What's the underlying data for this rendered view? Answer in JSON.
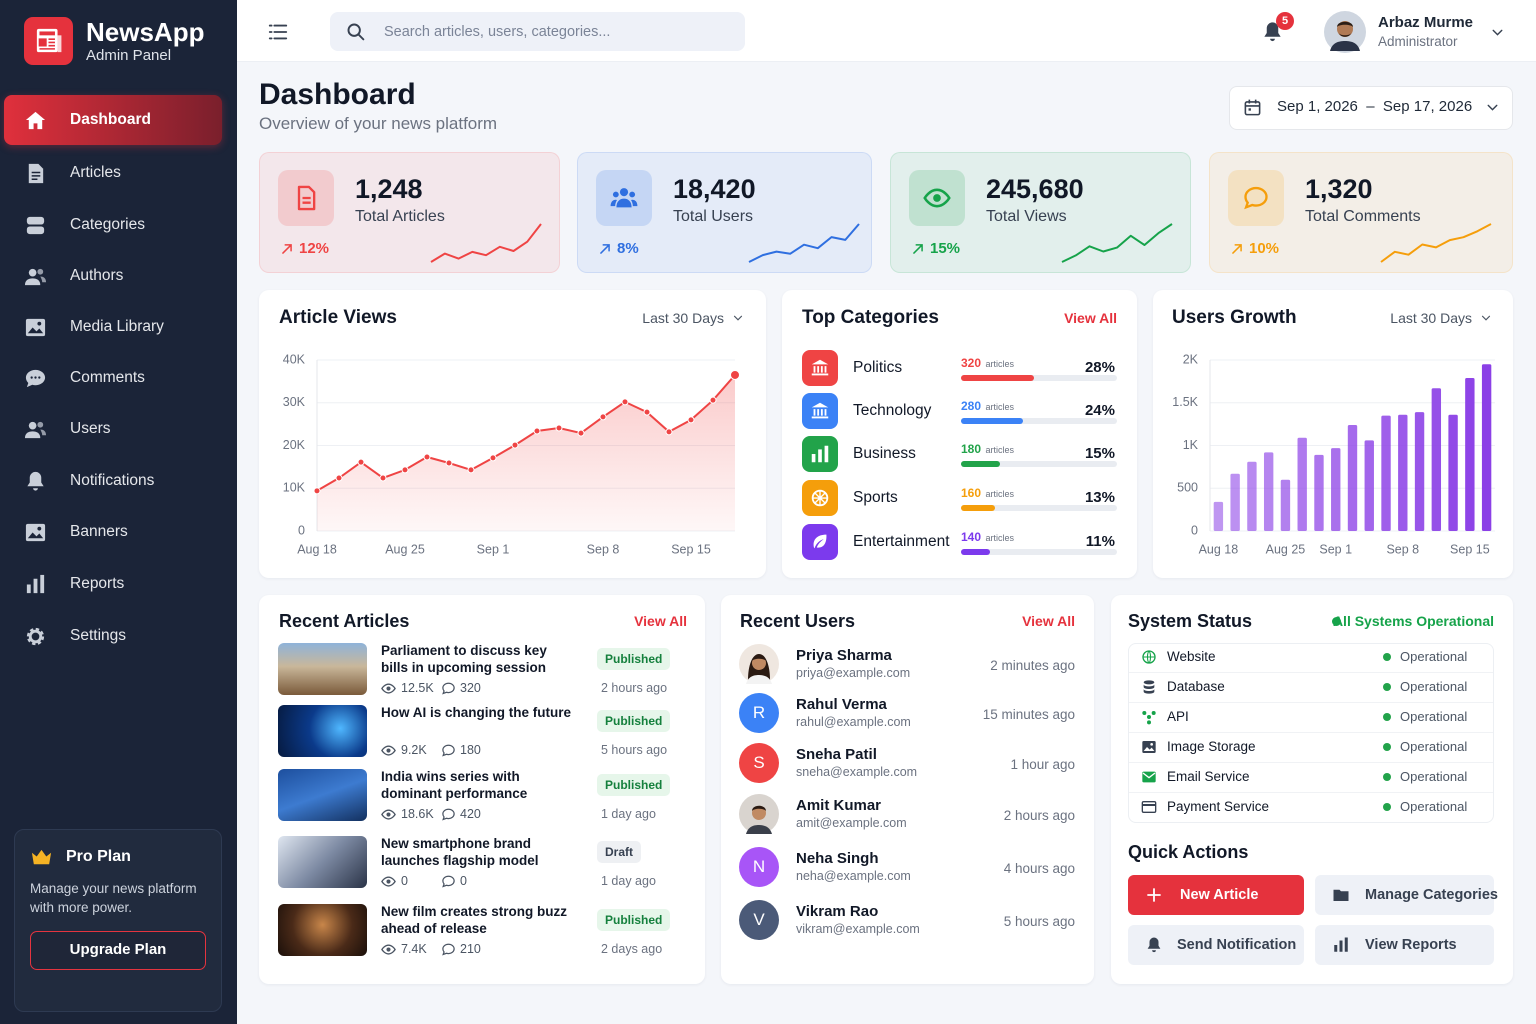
{
  "brand": {
    "name": "NewsApp",
    "subtitle": "Admin Panel"
  },
  "nav": {
    "active": 0,
    "items": [
      "Dashboard",
      "Articles",
      "Categories",
      "Authors",
      "Media Library",
      "Comments",
      "Users",
      "Notifications",
      "Banners",
      "Reports",
      "Settings"
    ]
  },
  "pro_plan": {
    "title": "Pro Plan",
    "text": "Manage your news platform with more power.",
    "button": "Upgrade Plan"
  },
  "topbar": {
    "search_placeholder": "Search articles, users, categories...",
    "notification_count": 5,
    "user": {
      "name": "Arbaz Murme",
      "role": "Administrator"
    }
  },
  "header": {
    "title": "Dashboard",
    "subtitle": "Overview of your news platform",
    "date_range": "Sep 1, 2026  –  Sep 17, 2026"
  },
  "stats": [
    {
      "value": "1,248",
      "label": "Total Articles",
      "change": "12%",
      "color": "#ef4444",
      "trend": [
        2,
        3,
        2.4,
        3.2,
        2.8,
        3.8,
        3.3,
        4.4,
        6.5
      ]
    },
    {
      "value": "18,420",
      "label": "Total Users",
      "change": "8%",
      "color": "#2f6fe0",
      "trend": [
        1,
        2,
        2.5,
        2.2,
        3.5,
        3,
        4.6,
        4.2,
        6.5
      ]
    },
    {
      "value": "245,680",
      "label": "Total Views",
      "change": "15%",
      "color": "#16a34a",
      "trend": [
        1,
        2,
        3.4,
        2.6,
        3.2,
        5,
        3.6,
        5.4,
        6.8
      ]
    },
    {
      "value": "1,320",
      "label": "Total Comments",
      "change": "10%",
      "color": "#f59e0b",
      "trend": [
        1,
        2.4,
        2,
        3.4,
        3,
        4,
        4.4,
        5.2,
        6.2
      ]
    }
  ],
  "chart_data": [
    {
      "type": "line",
      "title": "Article Views",
      "period": "Last 30 Days",
      "color": "#ef4444",
      "categories": [
        "Aug 18",
        null,
        null,
        null,
        "Aug 25",
        null,
        null,
        null,
        "Sep 1",
        null,
        null,
        null,
        null,
        "Sep 8",
        null,
        null,
        null,
        "Sep 15",
        null,
        null
      ],
      "values": [
        9400,
        12400,
        16100,
        12400,
        14300,
        17300,
        15900,
        14300,
        17100,
        20100,
        23400,
        24100,
        22900,
        26700,
        30200,
        27800,
        23200,
        26000,
        30600,
        36500
      ],
      "ylim": [
        0,
        40000
      ],
      "yticks": [
        0,
        {
          "value": 10000,
          "label": "10K"
        },
        {
          "value": 20000,
          "label": "20K"
        },
        {
          "value": 30000,
          "label": "30K"
        },
        {
          "value": 40000,
          "label": "40K"
        }
      ],
      "grid": true
    },
    {
      "type": "bar",
      "title": "Users Growth",
      "period": "Last 30 Days",
      "color": "#8b3fe6",
      "categories": [
        "Aug 18",
        null,
        null,
        null,
        "Aug 25",
        null,
        null,
        "Sep 1",
        null,
        null,
        null,
        "Sep 8",
        null,
        null,
        null,
        "Sep 15",
        null
      ],
      "values": [
        340,
        670,
        810,
        920,
        600,
        1090,
        890,
        970,
        1240,
        1060,
        1350,
        1360,
        1390,
        1670,
        1360,
        1790,
        1950
      ],
      "ylim": [
        0,
        2000
      ],
      "yticks": [
        0,
        500,
        {
          "value": 1000,
          "label": "1K"
        },
        {
          "value": 1500,
          "label": "1.5K"
        },
        {
          "value": 2000,
          "label": "2K"
        }
      ],
      "grid": true
    }
  ],
  "top_categories": {
    "title": "Top Categories",
    "link": "View All",
    "unit": "articles",
    "rows": [
      {
        "name": "Politics",
        "articles": 320,
        "share": 28,
        "share_label": "28%",
        "color": "#ef4444"
      },
      {
        "name": "Technology",
        "articles": 280,
        "share": 24,
        "share_label": "24%",
        "color": "#3b82f6"
      },
      {
        "name": "Business",
        "articles": 180,
        "share": 15,
        "share_label": "15%",
        "color": "#22a34a"
      },
      {
        "name": "Sports",
        "articles": 160,
        "share": 13,
        "share_label": "13%",
        "color": "#f59e0b"
      },
      {
        "name": "Entertainment",
        "articles": 140,
        "share": 11,
        "share_label": "11%",
        "color": "#7c3aed"
      }
    ]
  },
  "recent_articles": {
    "title": "Recent Articles",
    "link": "View All",
    "rows": [
      {
        "title": "Parliament to discuss key bills in upcoming session",
        "status": "Published",
        "views": "12.5K",
        "comments": "320",
        "time": "2 hours ago"
      },
      {
        "title": "How AI is changing the future",
        "status": "Published",
        "views": "9.2K",
        "comments": "180",
        "time": "5 hours ago"
      },
      {
        "title": "India wins series with dominant performance",
        "status": "Published",
        "views": "18.6K",
        "comments": "420",
        "time": "1 day ago"
      },
      {
        "title": "New smartphone brand launches flagship model",
        "status": "Draft",
        "views": "0",
        "comments": "0",
        "time": "1 day ago"
      },
      {
        "title": "New film creates strong buzz ahead of release",
        "status": "Published",
        "views": "7.4K",
        "comments": "210",
        "time": "2 days ago"
      }
    ]
  },
  "recent_users": {
    "title": "Recent Users",
    "link": "View All",
    "rows": [
      {
        "name": "Priya Sharma",
        "email": "priya@example.com",
        "time": "2 minutes ago"
      },
      {
        "name": "Rahul Verma",
        "email": "rahul@example.com",
        "time": "15 minutes ago",
        "initial": "R",
        "color": "#3b82f6"
      },
      {
        "name": "Sneha Patil",
        "email": "sneha@example.com",
        "time": "1 hour ago",
        "initial": "S",
        "color": "#ef4444"
      },
      {
        "name": "Amit Kumar",
        "email": "amit@example.com",
        "time": "2 hours ago"
      },
      {
        "name": "Neha Singh",
        "email": "neha@example.com",
        "time": "4 hours ago",
        "initial": "N",
        "color": "#a855f7"
      },
      {
        "name": "Vikram Rao",
        "email": "vikram@example.com",
        "time": "5 hours ago",
        "initial": "V",
        "color": "#4b5a78"
      }
    ]
  },
  "system_status": {
    "title": "System Status",
    "summary": "All Systems Operational",
    "items": [
      {
        "name": "Website",
        "status": "Operational"
      },
      {
        "name": "Database",
        "status": "Operational"
      },
      {
        "name": "API",
        "status": "Operational"
      },
      {
        "name": "Image Storage",
        "status": "Operational"
      },
      {
        "name": "Email Service",
        "status": "Operational"
      },
      {
        "name": "Payment Service",
        "status": "Operational"
      }
    ]
  },
  "quick_actions": {
    "title": "Quick Actions",
    "buttons": [
      "New Article",
      "Manage Categories",
      "Send Notification",
      "View Reports"
    ]
  }
}
